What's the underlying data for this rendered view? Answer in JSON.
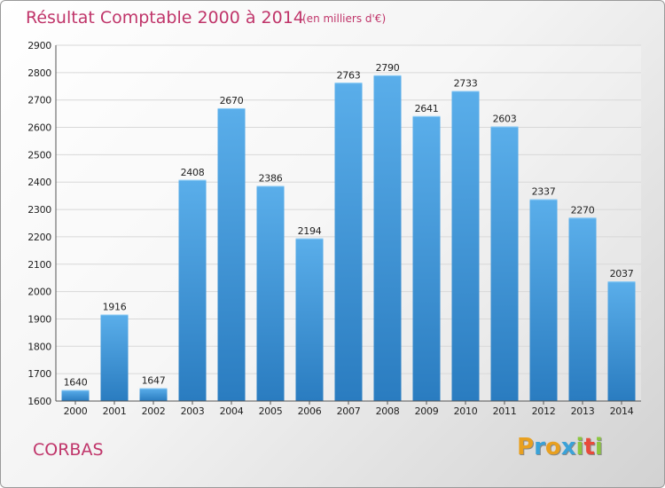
{
  "colors": {
    "title": "#c0356a",
    "bar_light": "#5aaeea",
    "bar_dark": "#2a7cc0",
    "grid": "#d8d8d8"
  },
  "commune": "CORBAS",
  "brand": {
    "letters": [
      "P",
      "r",
      "o",
      "x",
      "i",
      "t",
      "i"
    ],
    "colors": [
      "#e8a020",
      "#3aa2d8",
      "#e8a020",
      "#3aa2d8",
      "#8cc63f",
      "#e84b3a",
      "#8cc63f"
    ]
  },
  "chart_data": {
    "type": "bar",
    "title": "Résultat Comptable 2000 à 2014",
    "unit": "(en milliers d'€)",
    "xlabel": "",
    "ylabel": "",
    "categories": [
      "2000",
      "2001",
      "2002",
      "2003",
      "2004",
      "2005",
      "2006",
      "2007",
      "2008",
      "2009",
      "2010",
      "2011",
      "2012",
      "2013",
      "2014"
    ],
    "values": [
      1640,
      1916,
      1647,
      2408,
      2670,
      2386,
      2194,
      2763,
      2790,
      2641,
      2733,
      2603,
      2337,
      2270,
      2037
    ],
    "ylim": [
      1600,
      2900
    ],
    "yticks": [
      1600,
      1700,
      1800,
      1900,
      2000,
      2100,
      2200,
      2300,
      2400,
      2500,
      2600,
      2700,
      2800,
      2900
    ],
    "grid": true,
    "legend": "none"
  }
}
